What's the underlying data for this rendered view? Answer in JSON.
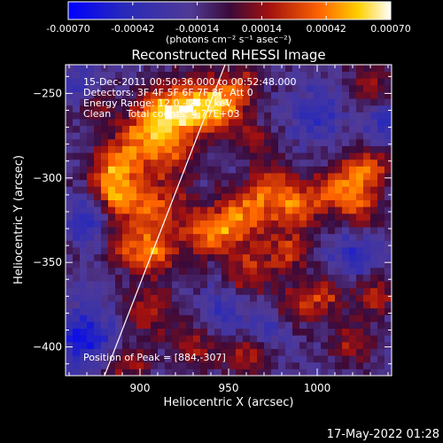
{
  "chart_data": {
    "type": "heatmap",
    "title": "Reconstructed RHESSI Image",
    "xlabel": "Heliocentric X (arcsec)",
    "ylabel": "Heliocentric Y (arcsec)",
    "xlim": [
      858,
      1042
    ],
    "ylim": [
      -417,
      -233
    ],
    "x_ticks": [
      900,
      950,
      1000
    ],
    "y_ticks": [
      -250,
      -300,
      -350,
      -400
    ],
    "colorbar": {
      "range": [
        -0.0007,
        0.0007
      ],
      "tick_labels": [
        "-0.00070",
        "-0.00042",
        "-0.00014",
        "0.00014",
        "0.00042",
        "0.00070"
      ],
      "tick_values": [
        -0.0007,
        -0.00042,
        -0.00014,
        0.00014,
        0.00042,
        0.0007
      ],
      "unit_label": "(photons cm⁻² s⁻¹ asec⁻²)"
    },
    "annotations": {
      "time_range": "15-Dec-2011 00:50:36.000 to 00:52:48.000",
      "detectors": "Detectors: 3F 4F 5F 6F 7F 8F, Att 0",
      "energy": "Energy Range: 12.0 - 25.0 keV",
      "clean": "Clean     Total counts: 4.77E+03",
      "peak": "Position of Peak = [884,-307]"
    },
    "limb_line": [
      [
        880,
        -417
      ],
      [
        948,
        -233
      ]
    ],
    "peak_position": [
      884,
      -307
    ],
    "blobs": [
      [
        928,
        -258,
        0.0006,
        12
      ],
      [
        910,
        -262,
        0.00048,
        10
      ],
      [
        947,
        -256,
        0.00052,
        10
      ],
      [
        895,
        -280,
        0.0004,
        10
      ],
      [
        915,
        -285,
        0.0004,
        12
      ],
      [
        883,
        -297,
        0.00045,
        9
      ],
      [
        890,
        -312,
        0.0005,
        10
      ],
      [
        912,
        -318,
        0.0004,
        11
      ],
      [
        895,
        -340,
        0.0004,
        9
      ],
      [
        910,
        -345,
        0.00042,
        9
      ],
      [
        940,
        -332,
        0.00055,
        10
      ],
      [
        960,
        -322,
        0.00048,
        11
      ],
      [
        975,
        -305,
        0.0004,
        10
      ],
      [
        990,
        -318,
        0.00045,
        9
      ],
      [
        1010,
        -306,
        0.00042,
        9
      ],
      [
        1028,
        -296,
        0.00052,
        9
      ],
      [
        1024,
        -318,
        0.0004,
        8
      ],
      [
        962,
        -355,
        0.00038,
        10
      ],
      [
        985,
        -343,
        0.00035,
        9
      ],
      [
        985,
        -378,
        0.00035,
        9
      ],
      [
        1003,
        -370,
        0.00038,
        8
      ],
      [
        1033,
        -370,
        0.00033,
        8
      ],
      [
        905,
        -378,
        0.00035,
        10
      ],
      [
        892,
        -410,
        0.00032,
        9
      ],
      [
        932,
        -398,
        0.0003,
        10
      ],
      [
        960,
        -405,
        0.00028,
        9
      ],
      [
        1020,
        -398,
        0.0003,
        9
      ],
      [
        1030,
        -245,
        0.00035,
        8
      ],
      [
        875,
        -255,
        0.0003,
        8
      ],
      [
        965,
        -278,
        0.00025,
        8
      ],
      [
        960,
        -242,
        0.00022,
        8
      ]
    ],
    "negatives": [
      [
        868,
        -395,
        -0.00045,
        12
      ],
      [
        870,
        -325,
        -0.00035,
        8
      ],
      [
        868,
        -245,
        -0.0003,
        8
      ],
      [
        1000,
        -262,
        -0.0003,
        10
      ],
      [
        1040,
        -268,
        -0.0003,
        8
      ],
      [
        975,
        -385,
        -0.0003,
        9
      ],
      [
        1020,
        -345,
        -0.0003,
        9
      ],
      [
        945,
        -380,
        -0.00025,
        9
      ]
    ]
  },
  "footer": {
    "timestamp": "17-May-2022 01:28"
  }
}
